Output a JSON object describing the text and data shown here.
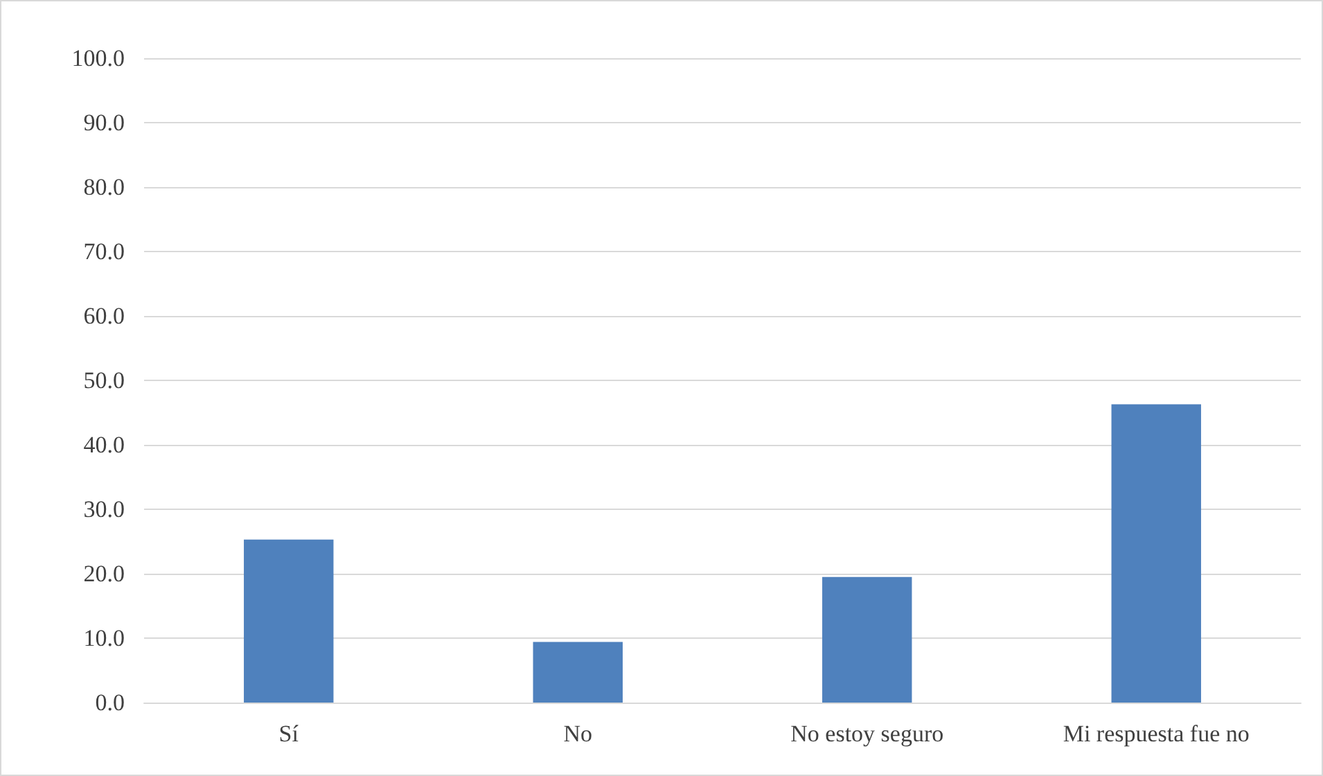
{
  "chart_data": {
    "type": "bar",
    "categories": [
      "Sí",
      "No",
      "No estoy seguro",
      "Mi respuesta fue no"
    ],
    "values": [
      25.3,
      9.4,
      19.5,
      46.3
    ],
    "color": "#4f81bd",
    "ylim": [
      0,
      100
    ],
    "yticks": [
      {
        "value": 0,
        "label": "0.0"
      },
      {
        "value": 10,
        "label": "10.0"
      },
      {
        "value": 20,
        "label": "20.0"
      },
      {
        "value": 30,
        "label": "30.0"
      },
      {
        "value": 40,
        "label": "40.0"
      },
      {
        "value": 50,
        "label": "50.0"
      },
      {
        "value": 60,
        "label": "60.0"
      },
      {
        "value": 70,
        "label": "70.0"
      },
      {
        "value": 80,
        "label": "80.0"
      },
      {
        "value": 90,
        "label": "90.0"
      },
      {
        "value": 100,
        "label": "100.0"
      }
    ],
    "grid": "y"
  }
}
